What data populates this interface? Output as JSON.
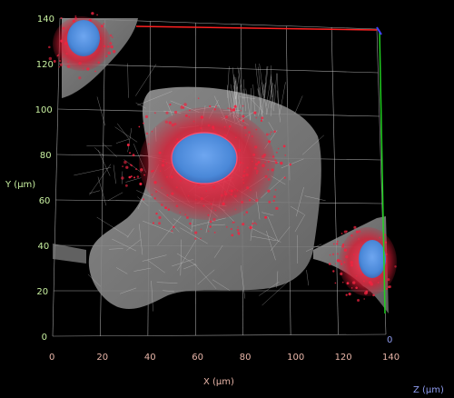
{
  "image": {
    "description_colors": {
      "background": "#000000",
      "grid": "#c8c8c8",
      "cytoskeleton": "#b5b5b5",
      "mitochondria": "#e0203a",
      "nucleus": "#4a88d8",
      "x_axis_labels": "#e8b5a8",
      "y_axis_labels": "#c8f0a0",
      "z_axis_label": "#8f9cf0",
      "x_axis_line": "#ff2020",
      "y_axis_line": "#20d020",
      "z_axis_line": "#4040ff"
    }
  },
  "axes": {
    "x": {
      "title": "X (µm)",
      "ticks": [
        "0",
        "20",
        "40",
        "60",
        "80",
        "100",
        "120",
        "140"
      ]
    },
    "y": {
      "title": "Y (µm)",
      "ticks": [
        "0",
        "20",
        "40",
        "60",
        "80",
        "100",
        "120",
        "140"
      ]
    },
    "z": {
      "title": "Z (µm)",
      "ticks": [
        "0"
      ]
    }
  }
}
